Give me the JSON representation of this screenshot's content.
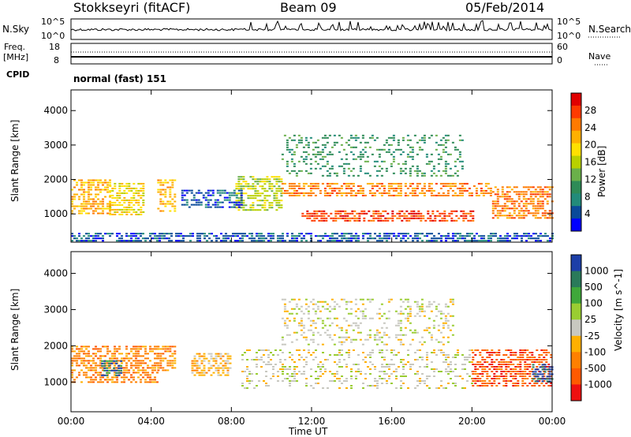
{
  "header": {
    "station": "Stokkseyri (fitACF)",
    "beam": "Beam 09",
    "date": "05/Feb/2014"
  },
  "summary": {
    "nsky_label": "N.Sky",
    "nsky_top": "10^5",
    "nsky_bottom": "10^0",
    "nsearch_label": "N.Search",
    "nsearch_top": "10^5",
    "nsearch_bottom": "10^0",
    "freq_label": "Freq.",
    "freq_unit": "[MHz]",
    "freq_top": "18",
    "freq_bottom": "8",
    "nave_label": "Nave",
    "nave_top": "60",
    "nave_bottom": "0",
    "cpid_label": "CPID",
    "cpid_value": "normal (fast) 151"
  },
  "colors": {
    "frame": "#000000",
    "ground_scatter": "#c8c8c0"
  },
  "chart_data": [
    {
      "type": "heatmap",
      "title": "",
      "ylabel": "Slant Range [km]",
      "xlabel": "Time UT",
      "xlim": [
        "00:00",
        "24:00"
      ],
      "ylim": [
        180,
        4600
      ],
      "x_ticks": [
        "00:00",
        "04:00",
        "08:00",
        "12:00",
        "16:00",
        "20:00",
        "00:00"
      ],
      "y_ticks": [
        "1000",
        "2000",
        "3000",
        "4000"
      ],
      "colorbar_label": "Power [dB]",
      "colorbar_ticks": [
        "28",
        "24",
        "20",
        "16",
        "12",
        "8",
        "4"
      ],
      "colorbar_colors": [
        "#e00000",
        "#ff3a00",
        "#ff7a00",
        "#ffb000",
        "#ffe000",
        "#b8d000",
        "#6ab04a",
        "#2e8b57",
        "#228b7a",
        "#0a4a9a",
        "#0000ff"
      ],
      "bands": [
        {
          "t0": 0.0,
          "t1": 1.9,
          "r0": 1000,
          "r1": 2000,
          "c": 3
        },
        {
          "t0": 1.9,
          "t1": 3.6,
          "r0": 1000,
          "r1": 1900,
          "c": 4
        },
        {
          "t0": 4.3,
          "t1": 5.2,
          "r0": 1100,
          "r1": 2000,
          "c": 3
        },
        {
          "t0": 8.2,
          "t1": 10.5,
          "r0": 1100,
          "r1": 2100,
          "c": 5
        },
        {
          "t0": 10.5,
          "t1": 21.0,
          "r0": 1500,
          "r1": 1900,
          "c": 2
        },
        {
          "t0": 11.5,
          "t1": 20.0,
          "r0": 800,
          "r1": 1100,
          "c": 1
        },
        {
          "t0": 21.0,
          "t1": 24.0,
          "r0": 900,
          "r1": 1800,
          "c": 2
        },
        {
          "t0": 10.5,
          "t1": 19.5,
          "r0": 2100,
          "r1": 3300,
          "c": 7
        },
        {
          "t0": 5.5,
          "t1": 8.5,
          "r0": 1200,
          "r1": 1700,
          "c": 9
        },
        {
          "t0": 0.0,
          "t1": 24.0,
          "r0": 200,
          "r1": 450,
          "c": 9
        }
      ]
    },
    {
      "type": "heatmap",
      "title": "",
      "ylabel": "Slant Range [km]",
      "xlabel": "Time UT",
      "xlim": [
        "00:00",
        "24:00"
      ],
      "ylim": [
        180,
        4600
      ],
      "x_ticks": [
        "00:00",
        "04:00",
        "08:00",
        "12:00",
        "16:00",
        "20:00",
        "00:00"
      ],
      "y_ticks": [
        "1000",
        "2000",
        "3000",
        "4000"
      ],
      "colorbar_label": "Velocity [m s^-1]",
      "colorbar_ticks": [
        "1000",
        "500",
        "100",
        "25",
        "-25",
        "-100",
        "-500",
        "-1000"
      ],
      "colorbar_colors": [
        "#1d3fa8",
        "#2a7a5a",
        "#3fa83a",
        "#9acd32",
        "#c8c8c0",
        "#ffb000",
        "#ff8000",
        "#ff5a00",
        "#ee1010"
      ],
      "bands": [
        {
          "t0": 0.0,
          "t1": 4.3,
          "r0": 1000,
          "r1": 2000,
          "c": 6
        },
        {
          "t0": 4.3,
          "t1": 5.2,
          "r0": 1300,
          "r1": 2000,
          "c": 6
        },
        {
          "t0": 6.0,
          "t1": 8.0,
          "r0": 1200,
          "r1": 1800,
          "c": 5
        },
        {
          "t0": 8.5,
          "t1": 20.0,
          "r0": 800,
          "r1": 1900,
          "c": 4
        },
        {
          "t0": 10.5,
          "t1": 19.0,
          "r0": 2000,
          "r1": 3300,
          "c": 4
        },
        {
          "t0": 20.0,
          "t1": 24.0,
          "r0": 900,
          "r1": 1900,
          "c": 7
        },
        {
          "t0": 23.0,
          "t1": 24.0,
          "r0": 1000,
          "r1": 1500,
          "c": 0
        },
        {
          "t0": 1.5,
          "t1": 2.5,
          "r0": 1200,
          "r1": 1600,
          "c": 1
        }
      ]
    }
  ]
}
